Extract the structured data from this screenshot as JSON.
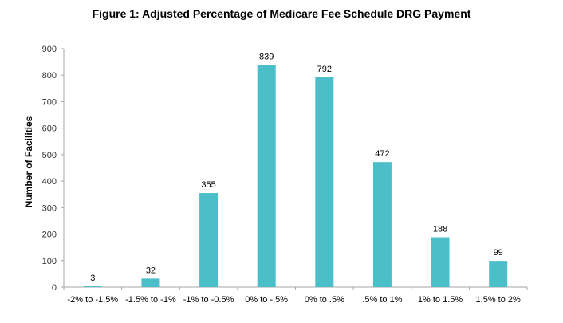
{
  "chart_data": {
    "type": "bar",
    "title": "Figure 1: Adjusted Percentage of Medicare Fee Schedule DRG Payment",
    "xlabel": "",
    "ylabel": "Number of Facilities",
    "categories": [
      "-2% to -1.5%",
      "-1.5% to -1%",
      "-1% to -0.5%",
      "0% to -.5%",
      "0% to .5%",
      ".5% to 1%",
      "1% to 1.5%",
      "1.5% to 2%"
    ],
    "values": [
      3,
      32,
      355,
      839,
      792,
      472,
      188,
      99
    ],
    "ylim": [
      0,
      900
    ],
    "yticks": [
      0,
      100,
      200,
      300,
      400,
      500,
      600,
      700,
      800,
      900
    ],
    "grid": false,
    "legend": "none",
    "bar_color": "#4BBFC9",
    "axis_color": "#A6A6A6"
  }
}
